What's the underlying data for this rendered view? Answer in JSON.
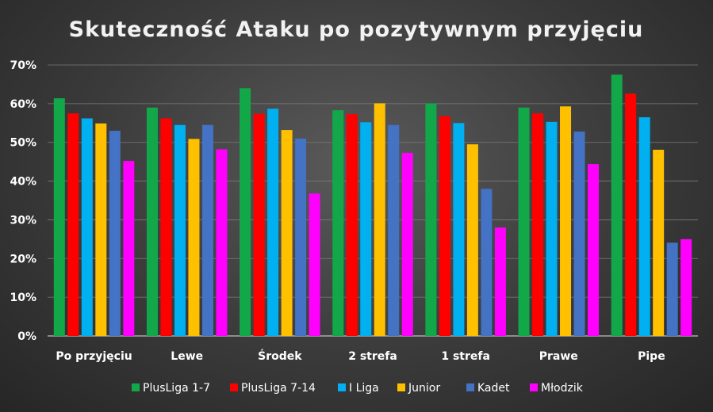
{
  "chart_data": {
    "type": "bar",
    "title": "Skuteczność Ataku po pozytywnym przyjęciu",
    "categories": [
      "Po przyjęciu",
      "Lewe",
      "Środek",
      "2 strefa",
      "1 strefa",
      "Prawe",
      "Pipe"
    ],
    "ylim": [
      0,
      70
    ],
    "yticks": [
      "0%",
      "10%",
      "20%",
      "30%",
      "40%",
      "50%",
      "60%",
      "70%"
    ],
    "ytick_values": [
      0,
      10,
      20,
      30,
      40,
      50,
      60,
      70
    ],
    "grid": true,
    "legend": "bottom",
    "series": [
      {
        "name": "PlusLiga 1-7",
        "color": "#12a84a",
        "values": [
          61.4,
          59.0,
          64.0,
          58.3,
          60.1,
          59.0,
          67.5
        ]
      },
      {
        "name": "PlusLiga 7-14",
        "color": "#ff0000",
        "values": [
          57.5,
          56.2,
          57.4,
          57.3,
          56.8,
          57.5,
          62.6
        ]
      },
      {
        "name": "I Liga",
        "color": "#00b0f0",
        "values": [
          56.2,
          54.5,
          58.7,
          55.2,
          55.0,
          55.3,
          56.5
        ]
      },
      {
        "name": "Junior",
        "color": "#ffc000",
        "values": [
          54.9,
          50.9,
          53.2,
          60.1,
          49.5,
          59.3,
          48.1
        ]
      },
      {
        "name": "Kadet",
        "color": "#4472c4",
        "values": [
          53.0,
          54.5,
          51.0,
          54.5,
          38.0,
          52.8,
          24.1
        ]
      },
      {
        "name": "Młodzik",
        "color": "#ff00ff",
        "values": [
          45.2,
          48.2,
          36.8,
          47.3,
          28.0,
          44.4,
          25.0
        ]
      }
    ]
  }
}
